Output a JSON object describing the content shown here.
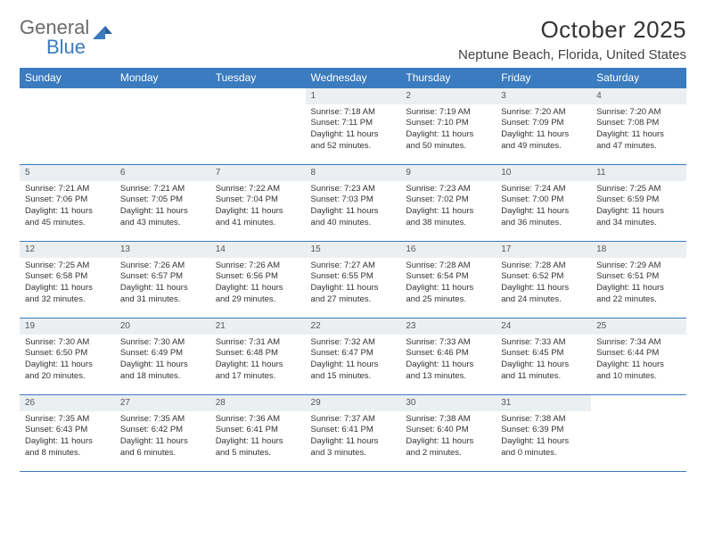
{
  "logo": {
    "word1": "General",
    "word2": "Blue",
    "triangle_color": "#3b7bbf"
  },
  "title": "October 2025",
  "location": "Neptune Beach, Florida, United States",
  "colors": {
    "header_bg": "#3b7bbf",
    "header_text": "#ffffff",
    "daynum_bg": "#eceff1",
    "border": "#3b7bbf",
    "body_text": "#333333"
  },
  "day_names": [
    "Sunday",
    "Monday",
    "Tuesday",
    "Wednesday",
    "Thursday",
    "Friday",
    "Saturday"
  ],
  "weeks": [
    [
      null,
      null,
      null,
      {
        "n": "1",
        "sr": "Sunrise: 7:18 AM",
        "ss": "Sunset: 7:11 PM",
        "d1": "Daylight: 11 hours",
        "d2": "and 52 minutes."
      },
      {
        "n": "2",
        "sr": "Sunrise: 7:19 AM",
        "ss": "Sunset: 7:10 PM",
        "d1": "Daylight: 11 hours",
        "d2": "and 50 minutes."
      },
      {
        "n": "3",
        "sr": "Sunrise: 7:20 AM",
        "ss": "Sunset: 7:09 PM",
        "d1": "Daylight: 11 hours",
        "d2": "and 49 minutes."
      },
      {
        "n": "4",
        "sr": "Sunrise: 7:20 AM",
        "ss": "Sunset: 7:08 PM",
        "d1": "Daylight: 11 hours",
        "d2": "and 47 minutes."
      }
    ],
    [
      {
        "n": "5",
        "sr": "Sunrise: 7:21 AM",
        "ss": "Sunset: 7:06 PM",
        "d1": "Daylight: 11 hours",
        "d2": "and 45 minutes."
      },
      {
        "n": "6",
        "sr": "Sunrise: 7:21 AM",
        "ss": "Sunset: 7:05 PM",
        "d1": "Daylight: 11 hours",
        "d2": "and 43 minutes."
      },
      {
        "n": "7",
        "sr": "Sunrise: 7:22 AM",
        "ss": "Sunset: 7:04 PM",
        "d1": "Daylight: 11 hours",
        "d2": "and 41 minutes."
      },
      {
        "n": "8",
        "sr": "Sunrise: 7:23 AM",
        "ss": "Sunset: 7:03 PM",
        "d1": "Daylight: 11 hours",
        "d2": "and 40 minutes."
      },
      {
        "n": "9",
        "sr": "Sunrise: 7:23 AM",
        "ss": "Sunset: 7:02 PM",
        "d1": "Daylight: 11 hours",
        "d2": "and 38 minutes."
      },
      {
        "n": "10",
        "sr": "Sunrise: 7:24 AM",
        "ss": "Sunset: 7:00 PM",
        "d1": "Daylight: 11 hours",
        "d2": "and 36 minutes."
      },
      {
        "n": "11",
        "sr": "Sunrise: 7:25 AM",
        "ss": "Sunset: 6:59 PM",
        "d1": "Daylight: 11 hours",
        "d2": "and 34 minutes."
      }
    ],
    [
      {
        "n": "12",
        "sr": "Sunrise: 7:25 AM",
        "ss": "Sunset: 6:58 PM",
        "d1": "Daylight: 11 hours",
        "d2": "and 32 minutes."
      },
      {
        "n": "13",
        "sr": "Sunrise: 7:26 AM",
        "ss": "Sunset: 6:57 PM",
        "d1": "Daylight: 11 hours",
        "d2": "and 31 minutes."
      },
      {
        "n": "14",
        "sr": "Sunrise: 7:26 AM",
        "ss": "Sunset: 6:56 PM",
        "d1": "Daylight: 11 hours",
        "d2": "and 29 minutes."
      },
      {
        "n": "15",
        "sr": "Sunrise: 7:27 AM",
        "ss": "Sunset: 6:55 PM",
        "d1": "Daylight: 11 hours",
        "d2": "and 27 minutes."
      },
      {
        "n": "16",
        "sr": "Sunrise: 7:28 AM",
        "ss": "Sunset: 6:54 PM",
        "d1": "Daylight: 11 hours",
        "d2": "and 25 minutes."
      },
      {
        "n": "17",
        "sr": "Sunrise: 7:28 AM",
        "ss": "Sunset: 6:52 PM",
        "d1": "Daylight: 11 hours",
        "d2": "and 24 minutes."
      },
      {
        "n": "18",
        "sr": "Sunrise: 7:29 AM",
        "ss": "Sunset: 6:51 PM",
        "d1": "Daylight: 11 hours",
        "d2": "and 22 minutes."
      }
    ],
    [
      {
        "n": "19",
        "sr": "Sunrise: 7:30 AM",
        "ss": "Sunset: 6:50 PM",
        "d1": "Daylight: 11 hours",
        "d2": "and 20 minutes."
      },
      {
        "n": "20",
        "sr": "Sunrise: 7:30 AM",
        "ss": "Sunset: 6:49 PM",
        "d1": "Daylight: 11 hours",
        "d2": "and 18 minutes."
      },
      {
        "n": "21",
        "sr": "Sunrise: 7:31 AM",
        "ss": "Sunset: 6:48 PM",
        "d1": "Daylight: 11 hours",
        "d2": "and 17 minutes."
      },
      {
        "n": "22",
        "sr": "Sunrise: 7:32 AM",
        "ss": "Sunset: 6:47 PM",
        "d1": "Daylight: 11 hours",
        "d2": "and 15 minutes."
      },
      {
        "n": "23",
        "sr": "Sunrise: 7:33 AM",
        "ss": "Sunset: 6:46 PM",
        "d1": "Daylight: 11 hours",
        "d2": "and 13 minutes."
      },
      {
        "n": "24",
        "sr": "Sunrise: 7:33 AM",
        "ss": "Sunset: 6:45 PM",
        "d1": "Daylight: 11 hours",
        "d2": "and 11 minutes."
      },
      {
        "n": "25",
        "sr": "Sunrise: 7:34 AM",
        "ss": "Sunset: 6:44 PM",
        "d1": "Daylight: 11 hours",
        "d2": "and 10 minutes."
      }
    ],
    [
      {
        "n": "26",
        "sr": "Sunrise: 7:35 AM",
        "ss": "Sunset: 6:43 PM",
        "d1": "Daylight: 11 hours",
        "d2": "and 8 minutes."
      },
      {
        "n": "27",
        "sr": "Sunrise: 7:35 AM",
        "ss": "Sunset: 6:42 PM",
        "d1": "Daylight: 11 hours",
        "d2": "and 6 minutes."
      },
      {
        "n": "28",
        "sr": "Sunrise: 7:36 AM",
        "ss": "Sunset: 6:41 PM",
        "d1": "Daylight: 11 hours",
        "d2": "and 5 minutes."
      },
      {
        "n": "29",
        "sr": "Sunrise: 7:37 AM",
        "ss": "Sunset: 6:41 PM",
        "d1": "Daylight: 11 hours",
        "d2": "and 3 minutes."
      },
      {
        "n": "30",
        "sr": "Sunrise: 7:38 AM",
        "ss": "Sunset: 6:40 PM",
        "d1": "Daylight: 11 hours",
        "d2": "and 2 minutes."
      },
      {
        "n": "31",
        "sr": "Sunrise: 7:38 AM",
        "ss": "Sunset: 6:39 PM",
        "d1": "Daylight: 11 hours",
        "d2": "and 0 minutes."
      },
      null
    ]
  ]
}
